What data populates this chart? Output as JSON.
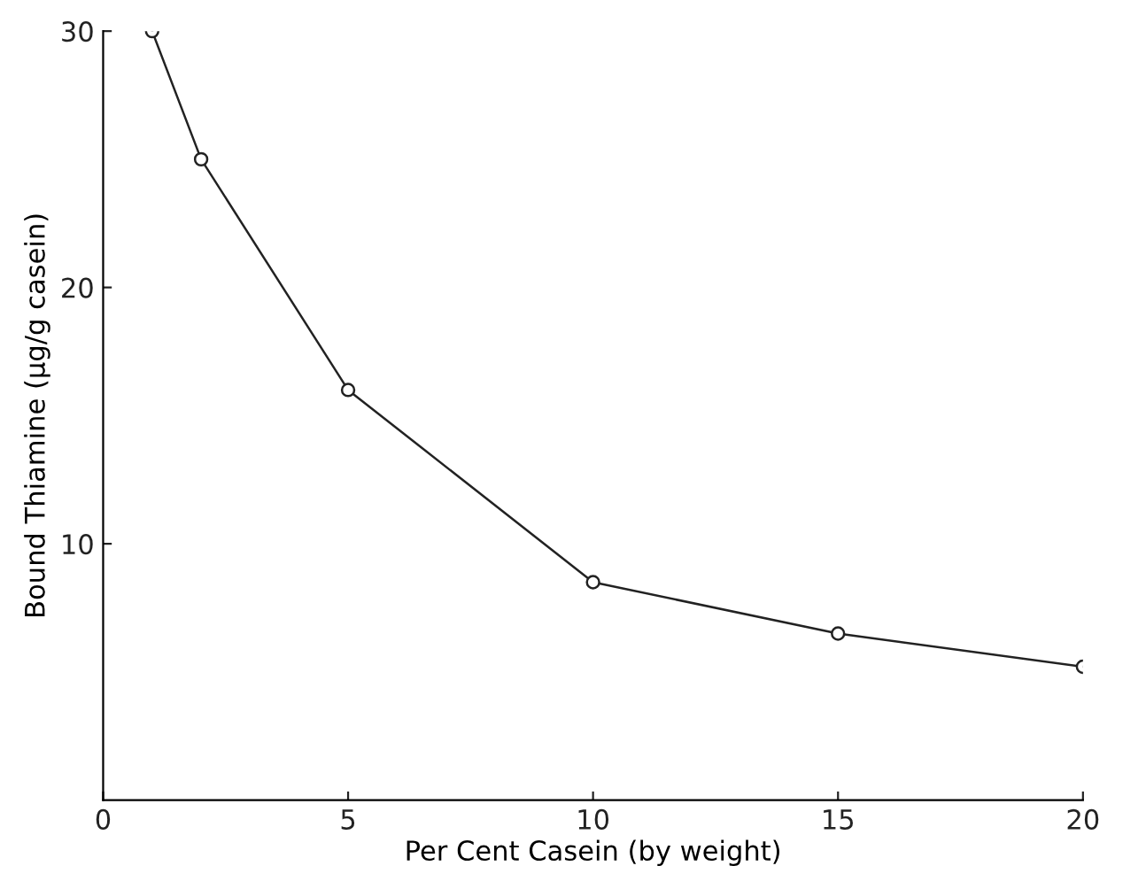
{
  "chart_data": {
    "type": "line",
    "xlabel": "Per Cent Casein (by weight)",
    "ylabel": "Bound Thiamine (μg/g casein)",
    "x": [
      1,
      2,
      5,
      10,
      15,
      20
    ],
    "series": [
      {
        "color": "#222222",
        "values": [
          30,
          25,
          16,
          8.5,
          6.5,
          5.2
        ]
      }
    ],
    "marker": "circle",
    "line_style": "solid",
    "grid": false,
    "legend": false,
    "xlim": [
      0,
      20
    ],
    "ylim": [
      0,
      30
    ],
    "xticks": [
      0,
      5,
      10,
      15,
      20
    ],
    "yticks": [
      10,
      20,
      30
    ]
  }
}
